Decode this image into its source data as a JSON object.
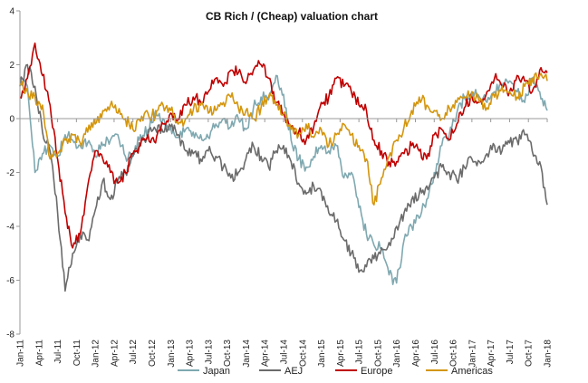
{
  "chart_data": {
    "type": "line",
    "title": "CB Rich / (Cheap) valuation chart",
    "xlabel": "",
    "ylabel": "",
    "ylim": [
      -8,
      4
    ],
    "yticks": [
      4,
      2,
      0,
      -2,
      -4,
      -6,
      -8
    ],
    "grid": false,
    "legend_position": "bottom",
    "x_tick_labels": [
      "Jan-11",
      "Apr-11",
      "Jul-11",
      "Oct-11",
      "Jan-12",
      "Apr-12",
      "Jul-12",
      "Oct-12",
      "Jan-13",
      "Apr-13",
      "Jul-13",
      "Oct-13",
      "Jan-14",
      "Apr-14",
      "Jul-14",
      "Oct-14",
      "Jan-15",
      "Apr-15",
      "Jul-15",
      "Oct-15",
      "Jan-16",
      "Apr-16",
      "Jul-16",
      "Oct-16",
      "Jan-17",
      "Apr-17",
      "Jul-17",
      "Oct-17",
      "Jan-18"
    ],
    "series": [
      {
        "name": "Japan",
        "color": "#7fa8b0",
        "values": [
          1.5,
          1.2,
          -2.0,
          -1.3,
          -1.0,
          -1.4,
          -0.6,
          -0.8,
          -1.0,
          -0.9,
          -1.4,
          -1.0,
          -0.8,
          -0.6,
          -1.4,
          -1.3,
          -0.6,
          -0.4,
          0.3,
          0.0,
          -0.3,
          -0.7,
          -0.4,
          -0.5,
          -0.6,
          -0.7,
          -0.2,
          0.0,
          -0.3,
          0.0,
          -0.4,
          0.4,
          0.8,
          0.7,
          1.6,
          0.9,
          -0.8,
          -1.5,
          -1.8,
          -1.4,
          -1.0,
          -1.2,
          -1.0,
          -2.2,
          -2.0,
          -3.3,
          -4.3,
          -4.7,
          -4.8,
          -5.8,
          -6.1,
          -4.5,
          -4.0,
          -3.7,
          -3.0,
          -2.0,
          -1.0,
          -0.6,
          0.2,
          0.8,
          1.0,
          0.8,
          0.6,
          1.0,
          1.2,
          1.4,
          1.0,
          0.6,
          1.5,
          1.0,
          0.3
        ]
      },
      {
        "name": "AEJ",
        "color": "#6b6b6b",
        "values": [
          1.2,
          2.0,
          1.2,
          -0.5,
          -1.2,
          -3.5,
          -6.4,
          -5.0,
          -4.3,
          -4.5,
          -3.4,
          -2.3,
          -3.0,
          -2.3,
          -2.0,
          -1.4,
          -1.0,
          -0.6,
          -0.4,
          -0.5,
          -0.3,
          -0.6,
          -1.2,
          -1.3,
          -1.5,
          -1.2,
          -1.4,
          -1.8,
          -2.2,
          -2.0,
          -1.5,
          -1.0,
          -1.4,
          -1.8,
          -1.2,
          -1.0,
          -1.6,
          -2.4,
          -2.8,
          -2.5,
          -2.7,
          -3.5,
          -3.8,
          -4.5,
          -5.0,
          -5.7,
          -5.5,
          -5.2,
          -4.8,
          -4.6,
          -4.0,
          -3.5,
          -3.0,
          -2.8,
          -2.5,
          -2.2,
          -1.8,
          -2.0,
          -2.3,
          -1.8,
          -1.5,
          -1.6,
          -1.3,
          -1.0,
          -1.2,
          -0.9,
          -0.8,
          -0.6,
          -1.2,
          -1.6,
          -3.2
        ]
      },
      {
        "name": "Europe",
        "color": "#c00000",
        "values": [
          0.8,
          1.5,
          2.8,
          1.6,
          0.5,
          -1.5,
          -3.5,
          -4.8,
          -4.3,
          -2.5,
          -1.2,
          -1.5,
          -2.0,
          -2.4,
          -2.0,
          -1.3,
          -1.0,
          -0.6,
          -0.9,
          -0.2,
          0.2,
          0.0,
          0.5,
          0.8,
          0.6,
          1.0,
          1.5,
          1.2,
          1.8,
          1.7,
          1.3,
          1.8,
          2.0,
          1.5,
          0.6,
          0.2,
          -0.3,
          -0.5,
          -0.8,
          -0.3,
          0.6,
          0.8,
          1.5,
          1.2,
          1.0,
          0.5,
          0.3,
          -0.8,
          -1.2,
          -1.6,
          -1.6,
          -1.3,
          -1.0,
          -1.2,
          -1.5,
          -0.6,
          -0.4,
          -0.8,
          -0.2,
          0.4,
          0.8,
          0.6,
          1.0,
          1.5,
          1.2,
          1.0,
          1.6,
          1.4,
          1.0,
          1.8,
          1.7
        ]
      },
      {
        "name": "Americas",
        "color": "#d4960e",
        "values": [
          1.3,
          1.0,
          0.8,
          0.5,
          -1.5,
          -1.3,
          -0.8,
          -0.6,
          -0.9,
          -0.5,
          -0.2,
          0.3,
          0.5,
          0.2,
          0.0,
          -0.4,
          -0.1,
          0.2,
          0.1,
          0.5,
          0.3,
          -0.2,
          0.0,
          0.3,
          0.5,
          0.2,
          0.3,
          0.6,
          0.8,
          0.4,
          0.3,
          0.0,
          0.4,
          0.8,
          0.5,
          0.2,
          -0.4,
          -0.6,
          -0.2,
          -0.7,
          -0.4,
          -1.0,
          -0.6,
          -0.2,
          -0.6,
          -1.0,
          -1.5,
          -3.2,
          -2.2,
          -1.4,
          -0.8,
          -0.3,
          0.3,
          0.8,
          0.5,
          0.3,
          0.0,
          0.4,
          0.6,
          0.8,
          1.0,
          0.6,
          0.4,
          0.8,
          1.2,
          1.0,
          0.8,
          1.2,
          1.5,
          1.6,
          1.4
        ]
      }
    ]
  }
}
